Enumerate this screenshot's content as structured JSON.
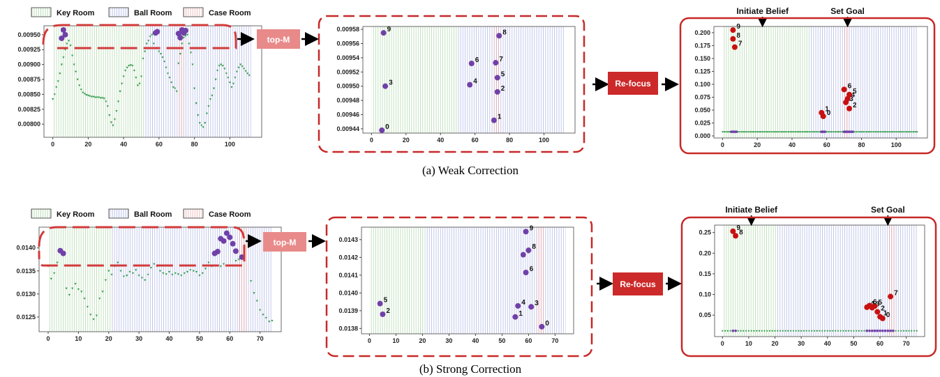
{
  "legend": [
    "Key Room",
    "Ball Room",
    "Case Room"
  ],
  "step_labels": {
    "top_m": "top-M",
    "refocus": "Re-focus"
  },
  "annotations": {
    "initiate_belief": "Initiate Belief",
    "set_goal": "Set Goal"
  },
  "captions": {
    "a": "(a) Weak Correction",
    "b": "(b) Strong Correction"
  },
  "colors": {
    "key_room": "#9ccf96",
    "ball_room": "#9aa4df",
    "case_room": "#e9a2a2",
    "green_pts": "#2e9a46",
    "purple_pts": "#7040a8",
    "red_pts": "#c81010",
    "dash_box": "#d23a3a",
    "topm_fill": "#e98a8a",
    "refocus_fill": "#cc2a2a"
  },
  "chart_data": [
    {
      "id": "a-left",
      "type": "scatter",
      "title": "",
      "xlabel": "",
      "ylabel": "",
      "xlim": [
        -5,
        118
      ],
      "ylim": [
        0.00778,
        0.00965
      ],
      "xticks": [
        0,
        20,
        40,
        60,
        80,
        100
      ],
      "yticks": [
        0.008,
        0.00825,
        0.0085,
        0.00875,
        0.009,
        0.00925,
        0.0095
      ],
      "ytick_labels": [
        "0.00800",
        "0.00825",
        "0.00850",
        "0.00875",
        "0.00900",
        "0.00925",
        "0.00950"
      ],
      "regions": [
        {
          "name": "Key Room",
          "x": [
            0,
            52
          ]
        },
        {
          "name": "Ball Room",
          "x": [
            52,
            112
          ]
        },
        {
          "name": "Case Room",
          "x": [
            71,
            74
          ]
        }
      ],
      "series": [
        {
          "color": "green",
          "size": "small",
          "x": [
            0,
            1,
            2,
            3,
            4,
            5,
            6,
            7,
            8,
            9,
            10,
            11,
            12,
            13,
            14,
            15,
            16,
            17,
            18,
            19,
            20,
            21,
            22,
            23,
            24,
            25,
            26,
            27,
            28,
            29,
            30,
            31,
            32,
            33,
            34,
            35,
            36,
            37,
            38,
            39,
            40,
            41,
            42,
            43,
            44,
            45,
            46,
            47,
            48,
            49,
            50,
            51,
            52,
            53,
            54,
            55,
            56,
            57,
            59,
            60,
            61,
            62,
            63,
            64,
            65,
            66,
            67,
            68,
            69,
            70,
            71,
            72,
            73,
            74,
            75,
            76,
            77,
            78,
            79,
            80,
            81,
            82,
            83,
            84,
            85,
            86,
            87,
            88,
            89,
            90,
            91,
            92,
            93,
            94,
            95,
            96,
            97,
            98,
            99,
            100,
            101,
            102,
            103,
            104,
            105,
            106,
            107,
            108,
            109,
            110,
            111
          ],
          "y": [
            0.00842,
            0.0085,
            0.00862,
            0.00872,
            0.00885,
            0.009,
            0.00912,
            0.00925,
            0.00935,
            0.0094,
            0.00932,
            0.00915,
            0.009,
            0.00888,
            0.00875,
            0.00865,
            0.00858,
            0.00853,
            0.00851,
            0.00849,
            0.00848,
            0.00847,
            0.00846,
            0.00846,
            0.00845,
            0.00845,
            0.00845,
            0.00844,
            0.00844,
            0.00843,
            0.00838,
            0.0083,
            0.00815,
            0.00803,
            0.00798,
            0.00808,
            0.00822,
            0.00838,
            0.00855,
            0.00868,
            0.0088,
            0.0089,
            0.00895,
            0.00898,
            0.00899,
            0.00898,
            0.0089,
            0.00878,
            0.00865,
            0.00868,
            0.0088,
            0.0091,
            0.00922,
            0.00935,
            0.0094,
            0.00947,
            0.0095,
            0.00935,
            0.00928,
            0.00922,
            0.00918,
            0.00912,
            0.00905,
            0.00895,
            0.00885,
            0.00878,
            0.0087,
            0.00862,
            0.0086,
            0.00855,
            0.00902,
            0.00918,
            0.00935,
            0.00945,
            0.00948,
            0.0095,
            0.00935,
            0.0092,
            0.009,
            0.0086,
            0.00835,
            0.00815,
            0.00802,
            0.00798,
            0.00795,
            0.00802,
            0.00818,
            0.0083,
            0.00842,
            0.00848,
            0.0086,
            0.00875,
            0.0089,
            0.00898,
            0.009,
            0.00898,
            0.00893,
            0.00885,
            0.00878,
            0.0087,
            0.00862,
            0.00868,
            0.00878,
            0.00888,
            0.00895,
            0.009,
            0.00897,
            0.00893,
            0.00889,
            0.00885,
            0.00882
          ]
        },
        {
          "color": "purple",
          "size": "large",
          "x": [
            5,
            6,
            7,
            58,
            59,
            71,
            72,
            73,
            74,
            75
          ],
          "y": [
            0.00944,
            0.00958,
            0.0095,
            0.00953,
            0.00955,
            0.00952,
            0.00945,
            0.00958,
            0.00953,
            0.00957
          ]
        }
      ]
    },
    {
      "id": "a-mid",
      "type": "scatter",
      "title": "",
      "xlabel": "",
      "ylabel": "",
      "xlim": [
        -5,
        118
      ],
      "ylim": [
        0.009434,
        0.009584
      ],
      "xticks": [
        0,
        20,
        40,
        60,
        80,
        100
      ],
      "yticks": [
        0.00944,
        0.00946,
        0.00948,
        0.0095,
        0.00952,
        0.00954,
        0.00956,
        0.00958
      ],
      "ytick_labels": [
        "0.00944",
        "0.00946",
        "0.00948",
        "0.00950",
        "0.00952",
        "0.00954",
        "0.00956",
        "0.00958"
      ],
      "regions": [
        {
          "name": "Key Room",
          "x": [
            0,
            50
          ]
        },
        {
          "name": "Ball Room",
          "x": [
            50,
            112
          ]
        },
        {
          "name": "Case Room",
          "x": [
            71,
            74
          ]
        }
      ],
      "series": [
        {
          "color": "purple",
          "size": "large",
          "labels": [
            "0",
            "1",
            "2",
            "3",
            "4",
            "5",
            "6",
            "7",
            "8",
            "9"
          ],
          "x": [
            6,
            71,
            73,
            8,
            57,
            73,
            58,
            72,
            74,
            7
          ],
          "y": [
            0.009438,
            0.009452,
            0.009492,
            0.0095,
            0.009502,
            0.009512,
            0.009532,
            0.009533,
            0.009571,
            0.009575
          ]
        }
      ]
    },
    {
      "id": "a-right",
      "type": "scatter",
      "title": "",
      "xlabel": "",
      "ylabel": "",
      "xlim": [
        -5,
        118
      ],
      "ylim": [
        -0.004,
        0.212
      ],
      "xticks": [
        0,
        20,
        40,
        60,
        80,
        100
      ],
      "yticks": [
        0.0,
        0.025,
        0.05,
        0.075,
        0.1,
        0.125,
        0.15,
        0.175,
        0.2
      ],
      "ytick_labels": [
        "0.000",
        "0.025",
        "0.050",
        "0.075",
        "0.100",
        "0.125",
        "0.150",
        "0.175",
        "0.200"
      ],
      "regions": [
        {
          "name": "Key Room",
          "x": [
            0,
            50
          ]
        },
        {
          "name": "Ball Room",
          "x": [
            50,
            112
          ]
        },
        {
          "name": "Case Room",
          "x": [
            70,
            73
          ]
        }
      ],
      "markers": [
        {
          "label": "Initiate Belief",
          "x": 23
        },
        {
          "label": "Set Goal",
          "x": 72
        }
      ],
      "baseline": {
        "y": 0.008,
        "x": [
          0,
          112
        ]
      },
      "series": [
        {
          "color": "red",
          "size": "large",
          "labels": [
            "0",
            "1",
            "2",
            "3",
            "4",
            "5",
            "6",
            "7",
            "8",
            "9"
          ],
          "x": [
            58,
            57,
            73,
            71,
            72,
            73,
            70,
            7,
            6,
            6
          ],
          "y": [
            0.038,
            0.045,
            0.053,
            0.065,
            0.072,
            0.08,
            0.09,
            0.172,
            0.188,
            0.205
          ]
        }
      ]
    },
    {
      "id": "b-left",
      "type": "scatter",
      "title": "",
      "xlabel": "",
      "ylabel": "",
      "xlim": [
        -3,
        77
      ],
      "ylim": [
        0.01218,
        0.01445
      ],
      "xticks": [
        0,
        10,
        20,
        30,
        40,
        50,
        60,
        70
      ],
      "yticks": [
        0.0125,
        0.013,
        0.0135,
        0.014
      ],
      "ytick_labels": [
        "0.0125",
        "0.0130",
        "0.0135",
        "0.0140"
      ],
      "regions": [
        {
          "name": "Key Room",
          "x": [
            0,
            21
          ]
        },
        {
          "name": "Ball Room",
          "x": [
            21,
            74
          ]
        },
        {
          "name": "Case Room",
          "x": [
            63,
            66
          ]
        }
      ],
      "series": [
        {
          "color": "green",
          "size": "small",
          "x": [
            0,
            1,
            2,
            3,
            6,
            7,
            8,
            9,
            10,
            11,
            12,
            13,
            14,
            15,
            16,
            17,
            18,
            19,
            20,
            21,
            22,
            23,
            24,
            25,
            26,
            27,
            28,
            29,
            30,
            31,
            32,
            33,
            34,
            35,
            36,
            37,
            38,
            39,
            40,
            41,
            42,
            43,
            44,
            45,
            46,
            47,
            48,
            49,
            50,
            51,
            52,
            53,
            54,
            57,
            58,
            62,
            63,
            67,
            68,
            69,
            70,
            71,
            72,
            73,
            74
          ],
          "y": [
            0.0136,
            0.01333,
            0.01345,
            0.01368,
            0.01312,
            0.01298,
            0.01312,
            0.01322,
            0.0131,
            0.01305,
            0.0129,
            0.01272,
            0.01255,
            0.01245,
            0.01253,
            0.0129,
            0.01305,
            0.0133,
            0.0135,
            0.01342,
            0.0136,
            0.01368,
            0.0135,
            0.01338,
            0.0134,
            0.01348,
            0.01345,
            0.01352,
            0.0134,
            0.01335,
            0.0133,
            0.01342,
            0.01357,
            0.01365,
            0.0136,
            0.0135,
            0.01345,
            0.01343,
            0.01348,
            0.01342,
            0.01345,
            0.01343,
            0.0134,
            0.01345,
            0.01348,
            0.01352,
            0.0135,
            0.01348,
            0.0134,
            0.01345,
            0.01355,
            0.01368,
            0.0136,
            0.0136,
            0.01365,
            0.01372,
            0.01375,
            0.01328,
            0.01302,
            0.01285,
            0.01265,
            0.01255,
            0.01248,
            0.0124,
            0.01242
          ]
        },
        {
          "color": "purple",
          "size": "large",
          "x": [
            4,
            5,
            55,
            56,
            57,
            58,
            59,
            60,
            61,
            62,
            64
          ],
          "y": [
            0.01394,
            0.01388,
            0.01388,
            0.01392,
            0.0142,
            0.01415,
            0.01432,
            0.01423,
            0.01409,
            0.01393,
            0.0138
          ]
        }
      ]
    },
    {
      "id": "b-mid",
      "type": "scatter",
      "title": "",
      "xlabel": "",
      "ylabel": "",
      "xlim": [
        -3,
        77
      ],
      "ylim": [
        0.01377,
        0.01437
      ],
      "xticks": [
        0,
        10,
        20,
        30,
        40,
        50,
        60,
        70
      ],
      "yticks": [
        0.0138,
        0.0139,
        0.014,
        0.0141,
        0.0142,
        0.0143
      ],
      "ytick_labels": [
        "0.0138",
        "0.0139",
        "0.0140",
        "0.0141",
        "0.0142",
        "0.0143"
      ],
      "regions": [
        {
          "name": "Key Room",
          "x": [
            0,
            21
          ]
        },
        {
          "name": "Ball Room",
          "x": [
            21,
            74
          ]
        },
        {
          "name": "Case Room",
          "x": [
            63,
            66
          ]
        }
      ],
      "series": [
        {
          "color": "purple",
          "size": "large",
          "labels": [
            "0",
            "1",
            "2",
            "3",
            "4",
            "5",
            "6",
            "7",
            "8",
            "9"
          ],
          "x": [
            65,
            55,
            5,
            61,
            56,
            4,
            59,
            58,
            60,
            59
          ],
          "y": [
            0.01381,
            0.013865,
            0.01388,
            0.013922,
            0.013927,
            0.01394,
            0.014115,
            0.014215,
            0.01424,
            0.014345
          ]
        }
      ]
    },
    {
      "id": "b-right",
      "type": "scatter",
      "title": "",
      "xlabel": "",
      "ylabel": "",
      "xlim": [
        -3,
        77
      ],
      "ylim": [
        -0.002,
        0.268
      ],
      "xticks": [
        0,
        10,
        20,
        30,
        40,
        50,
        60,
        70
      ],
      "yticks": [
        0.05,
        0.1,
        0.15,
        0.2,
        0.25
      ],
      "ytick_labels": [
        "0.05",
        "0.10",
        "0.15",
        "0.20",
        "0.25"
      ],
      "regions": [
        {
          "name": "Key Room",
          "x": [
            0,
            21
          ]
        },
        {
          "name": "Ball Room",
          "x": [
            21,
            74
          ]
        },
        {
          "name": "Case Room",
          "x": [
            63,
            66
          ]
        }
      ],
      "markers": [
        {
          "label": "Initiate Belief",
          "x": 11
        },
        {
          "label": "Set Goal",
          "x": 63
        }
      ],
      "baseline": {
        "y": 0.012,
        "x": [
          0,
          74
        ]
      },
      "series": [
        {
          "color": "red",
          "size": "large",
          "labels": [
            "0",
            "1",
            "2",
            "3",
            "4",
            "5",
            "6",
            "7",
            "8",
            "9"
          ],
          "x": [
            61,
            60,
            59,
            57,
            55,
            58,
            56,
            64,
            5,
            4
          ],
          "y": [
            0.042,
            0.046,
            0.058,
            0.068,
            0.069,
            0.072,
            0.073,
            0.095,
            0.242,
            0.253
          ]
        }
      ]
    }
  ]
}
